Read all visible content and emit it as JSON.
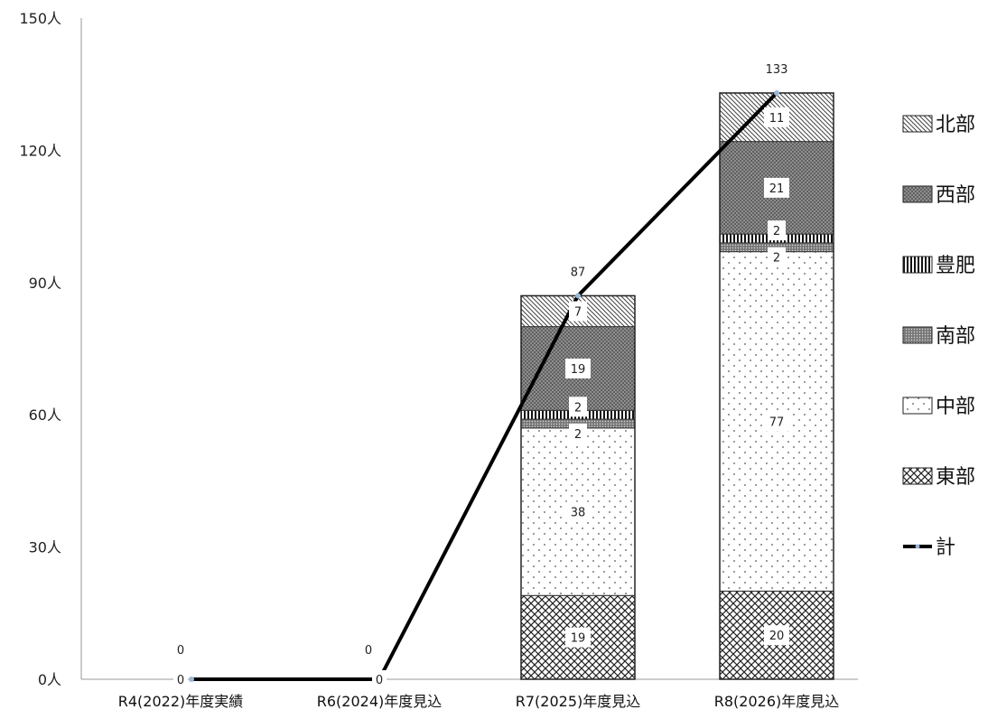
{
  "chart_data": {
    "type": "bar",
    "stacked": true,
    "categories": [
      "R4(2022)年度実績",
      "R6(2024)年度見込",
      "R7(2025)年度見込",
      "R8(2026)年度見込"
    ],
    "y_unit_suffix": "人",
    "yticks": [
      0,
      30,
      60,
      90,
      120,
      150
    ],
    "ylim": [
      0,
      150
    ],
    "series": [
      {
        "name": "東部",
        "pattern": "crosshatch",
        "values": [
          0,
          0,
          19,
          20
        ]
      },
      {
        "name": "中部",
        "pattern": "dots",
        "values": [
          0,
          0,
          38,
          77
        ]
      },
      {
        "name": "南部",
        "pattern": "dark-dots",
        "values": [
          0,
          0,
          2,
          2
        ]
      },
      {
        "name": "豊肥",
        "pattern": "vertical",
        "values": [
          0,
          0,
          2,
          2
        ]
      },
      {
        "name": "西部",
        "pattern": "dark-weave",
        "values": [
          0,
          0,
          19,
          21
        ]
      },
      {
        "name": "北部",
        "pattern": "diagonal",
        "values": [
          0,
          0,
          7,
          11
        ]
      }
    ],
    "line_series": {
      "name": "計",
      "values": [
        0,
        0,
        87,
        133
      ],
      "color": "#000000"
    },
    "legend_order": [
      "北部",
      "西部",
      "豊肥",
      "南部",
      "中部",
      "東部",
      "計"
    ],
    "legend_position": "right",
    "grid": false
  }
}
